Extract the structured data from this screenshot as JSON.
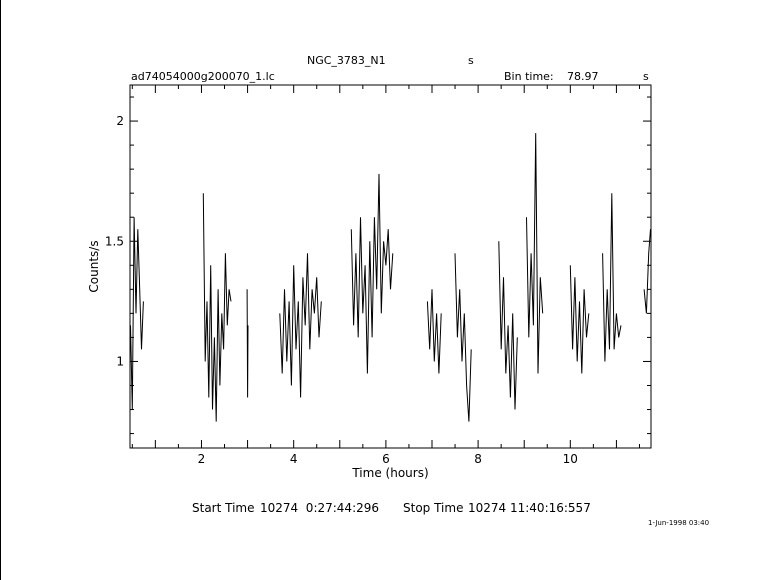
{
  "header": {
    "object_name": "NGC_3783_N1",
    "object_suffix": "s",
    "file_name": "ad74054000g200070_1.lc",
    "bin_time_label": "Bin time:",
    "bin_time_value": "78.97",
    "bin_time_unit": "s"
  },
  "footer": {
    "start_label": "Start Time",
    "start_value": "10274  0:27:44:296",
    "stop_label": "Stop Time",
    "stop_value": "10274 11:40:16:557",
    "date_stamp": "1-Jun-1998 03:40"
  },
  "chart_data": {
    "type": "line",
    "title": "",
    "xlabel": "Time (hours)",
    "ylabel": "Counts/s",
    "xlim": [
      0.45,
      11.75
    ],
    "ylim": [
      0.64,
      2.15
    ],
    "x_ticks": [
      2,
      4,
      6,
      8,
      10
    ],
    "y_ticks": [
      1,
      1.5,
      2
    ],
    "grid": false,
    "series": [
      {
        "segments": [
          {
            "x": [
              0.46,
              0.5,
              0.54,
              0.58,
              0.62,
              0.66,
              0.7,
              0.74
            ],
            "y": [
              1.15,
              0.8,
              1.6,
              1.2,
              1.55,
              1.3,
              1.05,
              1.25
            ]
          },
          {
            "x": [
              2.04,
              2.08,
              2.12,
              2.16,
              2.2,
              2.24,
              2.28,
              2.32,
              2.36,
              2.4,
              2.44,
              2.48,
              2.52,
              2.56,
              2.6,
              2.64
            ],
            "y": [
              1.7,
              1.0,
              1.25,
              0.85,
              1.4,
              0.8,
              1.1,
              0.75,
              1.3,
              0.9,
              1.2,
              1.05,
              1.45,
              1.15,
              1.3,
              1.25
            ]
          },
          {
            "x": [
              2.99,
              3.0,
              3.01
            ],
            "y": [
              1.3,
              0.85,
              1.15
            ]
          },
          {
            "x": [
              3.7,
              3.75,
              3.8,
              3.85,
              3.9,
              3.95,
              4.0,
              4.05,
              4.1,
              4.15,
              4.2,
              4.25,
              4.3,
              4.35,
              4.4,
              4.45,
              4.5,
              4.55,
              4.6
            ],
            "y": [
              1.2,
              0.95,
              1.3,
              1.0,
              1.25,
              0.9,
              1.4,
              1.05,
              1.25,
              0.85,
              1.35,
              1.15,
              1.45,
              1.05,
              1.3,
              1.2,
              1.35,
              1.1,
              1.25
            ]
          },
          {
            "x": [
              5.25,
              5.3,
              5.35,
              5.4,
              5.45,
              5.5,
              5.55,
              5.6,
              5.65,
              5.7,
              5.75,
              5.8,
              5.85,
              5.9,
              5.95,
              6.0,
              6.05,
              6.1,
              6.15
            ],
            "y": [
              1.55,
              1.15,
              1.45,
              1.1,
              1.6,
              1.2,
              1.4,
              0.95,
              1.5,
              1.1,
              1.6,
              1.3,
              1.78,
              1.2,
              1.5,
              1.4,
              1.55,
              1.3,
              1.45
            ]
          },
          {
            "x": [
              6.9,
              6.95,
              7.0,
              7.05,
              7.1,
              7.15,
              7.2
            ],
            "y": [
              1.25,
              1.05,
              1.3,
              1.0,
              1.2,
              0.95,
              1.2
            ]
          },
          {
            "x": [
              7.5,
              7.55,
              7.6,
              7.65,
              7.7,
              7.75,
              7.8,
              7.85
            ],
            "y": [
              1.45,
              1.1,
              1.3,
              1.0,
              1.2,
              0.9,
              0.75,
              1.05
            ]
          },
          {
            "x": [
              8.45,
              8.5,
              8.55,
              8.6,
              8.65,
              8.7,
              8.75,
              8.8,
              8.85
            ],
            "y": [
              1.5,
              1.05,
              1.35,
              0.95,
              1.15,
              0.85,
              1.2,
              0.8,
              1.1
            ]
          },
          {
            "x": [
              9.05,
              9.1,
              9.15,
              9.2,
              9.25,
              9.3,
              9.35,
              9.4
            ],
            "y": [
              1.6,
              1.1,
              1.45,
              1.15,
              1.95,
              0.95,
              1.35,
              1.2
            ]
          },
          {
            "x": [
              10.0,
              10.05,
              10.1,
              10.15,
              10.2,
              10.25,
              10.3,
              10.35,
              10.4
            ],
            "y": [
              1.4,
              1.05,
              1.35,
              1.0,
              1.25,
              0.95,
              1.3,
              1.1,
              1.2
            ]
          },
          {
            "x": [
              10.7,
              10.75,
              10.8,
              10.85,
              10.9,
              10.95,
              11.0,
              11.05,
              11.1
            ],
            "y": [
              1.45,
              1.0,
              1.3,
              1.05,
              1.7,
              1.05,
              1.2,
              1.1,
              1.15
            ]
          },
          {
            "x": [
              11.6,
              11.65,
              11.7,
              11.74
            ],
            "y": [
              1.3,
              1.2,
              1.45,
              1.55
            ]
          }
        ]
      }
    ]
  }
}
